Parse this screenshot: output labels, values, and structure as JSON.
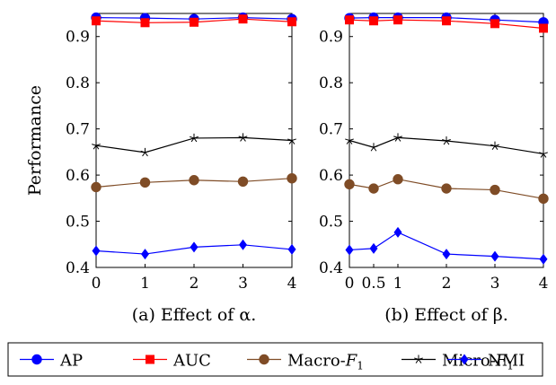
{
  "chart_data": [
    {
      "type": "line",
      "caption": "(a) Effect of α.",
      "ylabel": "Performance",
      "x": [
        0,
        1,
        2,
        3,
        4
      ],
      "xticks": [
        "0",
        "1",
        "2",
        "3",
        "4"
      ],
      "xlim": [
        0,
        4
      ],
      "yticks": [
        "0.4",
        "0.5",
        "0.6",
        "0.7",
        "0.8",
        "0.9"
      ],
      "ylim": [
        0.4,
        0.95
      ],
      "grid": false,
      "series": [
        {
          "name": "AP",
          "values": [
            0.941,
            0.94,
            0.938,
            0.941,
            0.938
          ]
        },
        {
          "name": "AUC",
          "values": [
            0.934,
            0.93,
            0.931,
            0.938,
            0.932
          ]
        },
        {
          "name": "Macro-F1",
          "values": [
            0.574,
            0.584,
            0.589,
            0.586,
            0.593
          ]
        },
        {
          "name": "Micro-F1",
          "values": [
            0.664,
            0.649,
            0.68,
            0.681,
            0.675
          ]
        },
        {
          "name": "NMI",
          "values": [
            0.436,
            0.429,
            0.444,
            0.449,
            0.439
          ]
        }
      ]
    },
    {
      "type": "line",
      "caption": "(b) Effect of β.",
      "ylabel": "",
      "x": [
        0,
        0.5,
        1,
        2,
        3,
        4
      ],
      "xticks": [
        "0",
        "0.5",
        "1",
        "2",
        "3",
        "4"
      ],
      "xlim": [
        0,
        4
      ],
      "yticks": [
        "0.4",
        "0.5",
        "0.6",
        "0.7",
        "0.8",
        "0.9"
      ],
      "ylim": [
        0.4,
        0.95
      ],
      "grid": false,
      "series": [
        {
          "name": "AP",
          "values": [
            0.94,
            0.941,
            0.941,
            0.941,
            0.936,
            0.931
          ]
        },
        {
          "name": "AUC",
          "values": [
            0.936,
            0.934,
            0.936,
            0.934,
            0.928,
            0.918
          ]
        },
        {
          "name": "Macro-F1",
          "values": [
            0.58,
            0.571,
            0.591,
            0.571,
            0.568,
            0.549
          ]
        },
        {
          "name": "Micro-F1",
          "values": [
            0.675,
            0.66,
            0.681,
            0.674,
            0.663,
            0.646
          ]
        },
        {
          "name": "NMI",
          "values": [
            0.438,
            0.441,
            0.476,
            0.429,
            0.424,
            0.418
          ]
        }
      ]
    }
  ],
  "legend": {
    "placement": "bottom",
    "items": [
      {
        "label": "AP",
        "color": "#0000ff",
        "marker": "circle"
      },
      {
        "label": "AUC",
        "color": "#ff0000",
        "marker": "square"
      },
      {
        "label": "Macro-",
        "sub": "1",
        "italic": "F",
        "color": "#7f4c26",
        "marker": "circle"
      },
      {
        "label": "Micro-",
        "sub": "1",
        "italic": "F",
        "color": "#000000",
        "marker": "star"
      },
      {
        "label": "NMI",
        "color": "#0000ff",
        "marker": "diamond"
      }
    ]
  }
}
